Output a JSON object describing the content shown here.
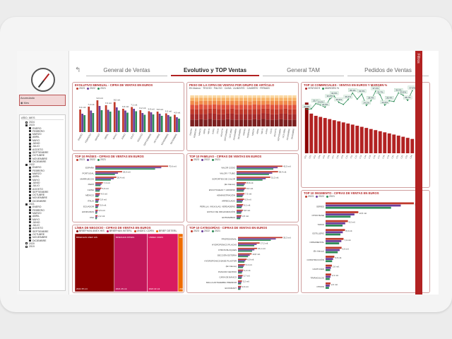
{
  "colors": {
    "accent": "#b22222",
    "dark_red": "#8b0000",
    "c2023": "#c0392b",
    "c2022": "#6a3d9a",
    "c2021": "#2e8b57",
    "treemap_bg": "#c2185b",
    "treemap_alt": "#e65100"
  },
  "tabs": [
    {
      "label": "General de Ventas"
    },
    {
      "label": "Evolutivo y TOP Ventas"
    },
    {
      "label": "General TAM"
    },
    {
      "label": "Pedidos de Ventas"
    }
  ],
  "filters_pane": {
    "label": "Filtros"
  },
  "sidebar": {
    "compass_icon": "compass-icon",
    "slicer": {
      "title": "Acumulado",
      "option": "Mes"
    },
    "tree": {
      "header": "AÑO, MES",
      "rows": [
        {
          "level": 1,
          "label": "2024",
          "checked": false
        },
        {
          "level": 1,
          "label": "2023",
          "checked": true
        },
        {
          "level": 2,
          "label": "ENERO",
          "checked": true
        },
        {
          "level": 2,
          "label": "FEBRERO",
          "checked": true
        },
        {
          "level": 2,
          "label": "MARZO",
          "checked": true
        },
        {
          "level": 2,
          "label": "ABRIL",
          "checked": true
        },
        {
          "level": 2,
          "label": "MAYO",
          "checked": true
        },
        {
          "level": 2,
          "label": "JUNIO",
          "checked": true
        },
        {
          "level": 2,
          "label": "JULIO",
          "checked": true
        },
        {
          "level": 2,
          "label": "AGOSTO",
          "checked": true
        },
        {
          "level": 2,
          "label": "SEPTIEMBRE",
          "checked": true
        },
        {
          "level": 2,
          "label": "OCTUBRE",
          "checked": true
        },
        {
          "level": 2,
          "label": "NOVIEMBRE",
          "checked": true
        },
        {
          "level": 2,
          "label": "DICIEMBRE",
          "checked": true
        },
        {
          "level": 1,
          "label": "2022",
          "checked": true
        },
        {
          "level": 2,
          "label": "ENERO",
          "checked": true
        },
        {
          "level": 2,
          "label": "FEBRERO",
          "checked": true
        },
        {
          "level": 2,
          "label": "MARZO",
          "checked": true
        },
        {
          "level": 2,
          "label": "ABRIL",
          "checked": true
        },
        {
          "level": 2,
          "label": "MAYO",
          "checked": true
        },
        {
          "level": 2,
          "label": "JUNIO",
          "checked": true
        },
        {
          "level": 2,
          "label": "JULIO",
          "checked": true
        },
        {
          "level": 2,
          "label": "AGOSTO",
          "checked": true
        },
        {
          "level": 2,
          "label": "SEPTIEMBRE",
          "checked": true
        },
        {
          "level": 2,
          "label": "OCTUBRE",
          "checked": true
        },
        {
          "level": 2,
          "label": "NOVIEMBRE",
          "checked": true
        },
        {
          "level": 2,
          "label": "DICIEMBRE",
          "checked": true
        },
        {
          "level": 1,
          "label": "2021",
          "checked": true
        },
        {
          "level": 2,
          "label": "ENERO",
          "checked": true
        },
        {
          "level": 2,
          "label": "FEBRERO",
          "checked": true
        },
        {
          "level": 2,
          "label": "MARZO",
          "checked": true
        },
        {
          "level": 2,
          "label": "ABRIL",
          "checked": true
        },
        {
          "level": 2,
          "label": "MAYO",
          "checked": true
        },
        {
          "level": 2,
          "label": "JUNIO",
          "checked": true
        },
        {
          "level": 2,
          "label": "JULIO",
          "checked": true
        },
        {
          "level": 2,
          "label": "AGOSTO",
          "checked": true
        },
        {
          "level": 2,
          "label": "SEPTIEMBRE",
          "checked": true
        },
        {
          "level": 2,
          "label": "OCTUBRE",
          "checked": true
        },
        {
          "level": 2,
          "label": "NOVIEMBRE",
          "checked": true
        },
        {
          "level": 2,
          "label": "DICIEMBRE",
          "checked": true
        },
        {
          "level": 1,
          "label": "2020",
          "checked": false
        },
        {
          "level": 1,
          "label": "2019",
          "checked": false
        }
      ]
    }
  },
  "panels": {
    "evolutivo": {
      "title": "EVOLUTIVO MENSUAL - CIFRA DE VENTAS EN EUROS",
      "legend": [
        "2023",
        "2022",
        "2021"
      ]
    },
    "peso_cifra": {
      "title": "PESO DE LA CIFRA DE VENTAS POR GRUPO DE ARTÍCULO",
      "legend": [
        "Eh blanco",
        "TECHO",
        "FALSO",
        "CASA",
        "ALBAYES",
        "CAMERS",
        "FIRMAS"
      ]
    },
    "top_comerciales": {
      "title": "TOP 10 COMERCIALES - VENTAS EN EUROS Y MARGEN %",
      "legend": [
        "VENTAS €",
        "MARGEN %"
      ]
    },
    "top_paises": {
      "title": "TOP 10 PAÍSES - CIFRAS DE VENTAS EN EUROS",
      "legend": [
        "2023",
        "2022",
        "2021"
      ]
    },
    "top_familias": {
      "title": "TOP 10 FAMILIAS - CIFRAS DE VENTAS EN EUROS",
      "legend": [
        "2023",
        "2022",
        "2021"
      ]
    },
    "top_segmento": {
      "title": "TOP 10 SEGMENTO - CIFRAS DE VENTAS EN EUROS",
      "legend": [
        "2023",
        "2022",
        "2021"
      ]
    },
    "linea_negocio": {
      "title": "LÍNEA DE NEGOCIO - CIFRAS DE VENTAS EN EUROS",
      "legend": [
        "BRIEFHAN ANEX HIS",
        "BRIEFHAN INTERL",
        "UNDEC CDRN",
        "BRIEF DETERL"
      ]
    },
    "top_categorias": {
      "title": "TOP 10 CATEGORÍAS - CIFRAS DE VENTAS EN EUROS",
      "legend": [
        "2023",
        "2022",
        "2021"
      ]
    }
  },
  "chart_data": [
    {
      "type": "bar",
      "title": "EVOLUTIVO MENSUAL - CIFRA DE VENTAS EN EUROS",
      "categories": [
        "ENERO",
        "FEBRERO",
        "MARZO",
        "ABRIL",
        "MAYO",
        "JUNIO",
        "JULIO",
        "AGOSTO",
        "SEPTIEMBRE",
        "OCTUBRE",
        "NOVIEMBRE",
        "DICIEMBRE"
      ],
      "series": [
        {
          "name": "2023",
          "values": [
            6.4,
            7.2,
            9.0,
            7.6,
            8.5,
            6.6,
            7.1,
            6.2,
            5.9,
            5.8,
            5.3,
            4.9
          ]
        },
        {
          "name": "2022",
          "values": [
            5.2,
            6.1,
            7.4,
            6.3,
            7.0,
            6.1,
            6.6,
            5.4,
            5.6,
            5.2,
            4.8,
            4.2
          ]
        },
        {
          "name": "2021",
          "values": [
            4.8,
            5.4,
            6.2,
            5.8,
            6.1,
            5.5,
            5.9,
            4.9,
            5.0,
            4.6,
            4.4,
            3.8
          ]
        }
      ],
      "data_labels": [
        "6,4 mil.",
        "7,2 mil.",
        "9,0 mil.",
        "7,6 mil.",
        "8,5 mil.",
        "6,6 mil.",
        "7,1 mil.",
        "6,2 mil.",
        "5,9 mil.",
        "5,8 mil.",
        "5,3 mil.",
        "4,9 mil."
      ],
      "ylim": [
        0,
        10
      ]
    },
    {
      "type": "bar",
      "title": "PESO DE LA CIFRA DE VENTAS POR GRUPO DE ARTÍCULO",
      "categories": [
        "ENERO",
        "FEBRERO",
        "MARZO",
        "ABRIL",
        "MAYO",
        "JUNIO",
        "JULIO",
        "AGOSTO",
        "SEPTIEMBRE",
        "OCTUBRE",
        "NOVIEMBRE",
        "DICIEMBRE",
        "ENERO",
        "FEBRERO",
        "MARZO",
        "ABRIL",
        "MAYO",
        "JUNIO",
        "JULIO",
        "AGOSTO",
        "SEPTIEMBRE",
        "OCTUBRE",
        "NOVIEMBRE",
        "DICIEMBRE"
      ],
      "series": [
        {
          "name": "Eh blanco",
          "values": [
            0.22,
            0.21,
            0.23,
            0.22,
            0.24,
            0.22,
            0.21,
            0.22,
            0.23,
            0.22,
            0.21,
            0.22,
            0.22,
            0.21,
            0.23,
            0.22,
            0.24,
            0.22,
            0.21,
            0.22,
            0.23,
            0.22,
            0.21,
            0.22
          ]
        },
        {
          "name": "TECHO",
          "values": [
            0.18,
            0.19,
            0.17,
            0.18,
            0.18,
            0.19,
            0.18,
            0.17,
            0.18,
            0.19,
            0.18,
            0.18,
            0.18,
            0.19,
            0.17,
            0.18,
            0.18,
            0.19,
            0.18,
            0.17,
            0.18,
            0.19,
            0.18,
            0.18
          ]
        },
        {
          "name": "FALSO",
          "values": [
            0.16,
            0.15,
            0.16,
            0.16,
            0.15,
            0.16,
            0.17,
            0.16,
            0.15,
            0.16,
            0.16,
            0.15,
            0.16,
            0.15,
            0.16,
            0.16,
            0.15,
            0.16,
            0.17,
            0.16,
            0.15,
            0.16,
            0.16,
            0.15
          ]
        },
        {
          "name": "CASA",
          "values": [
            0.14,
            0.14,
            0.15,
            0.14,
            0.13,
            0.14,
            0.14,
            0.15,
            0.14,
            0.13,
            0.14,
            0.15,
            0.14,
            0.14,
            0.15,
            0.14,
            0.13,
            0.14,
            0.14,
            0.15,
            0.14,
            0.13,
            0.14,
            0.15
          ]
        },
        {
          "name": "ALBAYES",
          "values": [
            0.12,
            0.12,
            0.11,
            0.12,
            0.12,
            0.11,
            0.12,
            0.12,
            0.12,
            0.12,
            0.13,
            0.12,
            0.12,
            0.12,
            0.11,
            0.12,
            0.12,
            0.11,
            0.12,
            0.12,
            0.12,
            0.12,
            0.13,
            0.12
          ]
        },
        {
          "name": "CAMERS",
          "values": [
            0.1,
            0.11,
            0.1,
            0.1,
            0.1,
            0.1,
            0.1,
            0.1,
            0.1,
            0.1,
            0.1,
            0.1,
            0.1,
            0.11,
            0.1,
            0.1,
            0.1,
            0.1,
            0.1,
            0.1,
            0.1,
            0.1,
            0.1,
            0.1
          ]
        },
        {
          "name": "FIRMAS",
          "values": [
            0.08,
            0.08,
            0.08,
            0.08,
            0.08,
            0.08,
            0.08,
            0.08,
            0.08,
            0.08,
            0.08,
            0.08,
            0.08,
            0.08,
            0.08,
            0.08,
            0.08,
            0.08,
            0.08,
            0.08,
            0.08,
            0.08,
            0.08,
            0.08
          ]
        }
      ],
      "ylim": [
        0,
        1
      ]
    },
    {
      "type": "bar",
      "title": "TOP 10 COMERCIALES - VENTAS EN EUROS Y MARGEN %",
      "categories": [
        "C01",
        "C02",
        "C03",
        "C04",
        "C05",
        "C06",
        "C07",
        "C08",
        "C09",
        "C10",
        "C11",
        "C12",
        "C13",
        "C14",
        "C15",
        "C16",
        "C17",
        "C18",
        "C19",
        "C20",
        "C21",
        "C22",
        "C23",
        "C24"
      ],
      "series": [
        {
          "name": "VENTAS €",
          "values": [
            46,
            36,
            34,
            33,
            32,
            31,
            30,
            29,
            28,
            27,
            26,
            25,
            24,
            23,
            22,
            21,
            20,
            19,
            18,
            17,
            16,
            15,
            14,
            13
          ]
        },
        {
          "name": "MARGEN %",
          "values": [
            20.6,
            21.1,
            25.9,
            24.6,
            22.5,
            30.0,
            32.6,
            26.9,
            25.1,
            29.4,
            35.4,
            29.8,
            34.5,
            24.1,
            28.4,
            37.1,
            33.7,
            24.4,
            28.4,
            27.8,
            35.5,
            33.5,
            28.7,
            37.6
          ]
        }
      ],
      "data_labels": [
        "20,6%",
        "",
        "25,9%",
        "24,6%",
        "22,5%",
        "30,0%",
        "32,6%",
        "26,9%",
        "",
        "29,4%",
        "35,4%",
        "",
        "34,5%",
        "24,1%",
        "28,4%",
        "37,1%",
        "33,7%",
        "24,4%",
        "28,4%",
        "",
        "35,5%",
        "33,5%",
        "28,7%",
        "37,6%"
      ],
      "ylim": [
        0,
        50
      ]
    },
    {
      "type": "bar",
      "title": "TOP 10 PAÍSES - CIFRAS DE VENTAS EN EUROS",
      "categories": [
        "ESPAÑA",
        "PORTUGAL",
        "MARRUECOS",
        "PERÚ",
        "CHINA",
        "MÉXICO",
        "ITALIA",
        "ECUADOR",
        "HONDURAS",
        "USA"
      ],
      "series": [
        {
          "name": "2023",
          "values": [
            70.6,
            26.0,
            20.4,
            7.3,
            5.9,
            4.6,
            3.9,
            3.6,
            2.5,
            2.2
          ]
        },
        {
          "name": "2022",
          "values": [
            64.0,
            22.0,
            18.0,
            6.0,
            4.8,
            3.9,
            3.2,
            2.9,
            2.0,
            1.8
          ]
        },
        {
          "name": "2021",
          "values": [
            58.0,
            19.0,
            15.0,
            5.0,
            4.1,
            3.1,
            2.8,
            2.4,
            1.7,
            1.5
          ]
        }
      ],
      "data_labels": [
        "70,6 mil.",
        "26,0 mil.",
        "20,4 mil.",
        "7,3 mil.",
        "5,9 mil.",
        "4,6 mil.",
        "3,9 mil.",
        "3,6 mil.",
        "2,5 mil.",
        "2,2 mil."
      ]
    },
    {
      "type": "bar",
      "title": "TOP 10 FAMILIAS - CIFRAS DE VENTAS EN EUROS",
      "categories": [
        "VALOR CODO",
        "VALOR Y TUBO",
        "SOPORTES DE CALOR",
        "(En blanco)",
        "ESCUTCHEAD Y ADORNO",
        "ADMINISTRACIÓN",
        "ARREGLADO",
        "PERILLA, VÁLVULAS, VERDADERO",
        "ESTILO DE ORGANIZACIÓN",
        "ENTRAMBAS"
      ],
      "series": [
        {
          "name": "2023",
          "values": [
            42.5,
            38.4,
            31.2,
            8.8,
            8.6,
            7.3,
            6.9,
            6.1,
            5.8,
            4.5
          ]
        },
        {
          "name": "2022",
          "values": [
            38.0,
            33.0,
            27.0,
            7.6,
            7.3,
            6.2,
            5.9,
            5.2,
            4.9,
            3.9
          ]
        },
        {
          "name": "2021",
          "values": [
            34.0,
            30.0,
            24.0,
            6.8,
            6.5,
            5.5,
            5.1,
            4.6,
            4.2,
            3.4
          ]
        }
      ],
      "data_labels": [
        "42,5 mil.",
        "38,4 mil.",
        "31,2 mil.",
        "8,8 mil.",
        "8,6 mil.",
        "7,3 mil.",
        "6,9 mil.",
        "6,1 mil.",
        "5,8 mil.",
        "4,5 mil."
      ]
    },
    {
      "type": "bar",
      "title": "TOP 10 SEGMENTO - CIFRAS DE VENTAS EN EUROS",
      "categories": [
        "SERIES",
        "OTRO BASE",
        "TAPAS",
        "ESTILLERO",
        "ORNAMENTAL",
        "(En blanco)",
        "CONSTRUCCIÓN",
        "CANTUCES",
        "TRIÁNGULOS",
        "OTROS"
      ],
      "series": [
        {
          "name": "2023",
          "values": [
            36.4,
            13.5,
            9.2,
            8.0,
            7.4,
            6.6,
            3.6,
            2.6,
            2.3,
            2.0
          ]
        },
        {
          "name": "2022",
          "values": [
            31.0,
            11.9,
            8.1,
            7.1,
            6.5,
            5.8,
            3.1,
            2.2,
            2.0,
            1.7
          ]
        },
        {
          "name": "2021",
          "values": [
            27.0,
            10.3,
            7.0,
            6.1,
            5.6,
            5.0,
            2.7,
            1.9,
            1.7,
            1.4
          ]
        }
      ],
      "data_labels": [
        "36,4 mil.",
        "13,5 mil.",
        "9,2 mil.",
        "8,0 mil.",
        "7,4 mil.",
        "6,6 mil.",
        "3,6 mil.",
        "2,6 mil.",
        "2,3 mil.",
        "2,0 mil."
      ]
    },
    {
      "type": "heatmap",
      "title": "LÍNEA DE NEGOCIO - CIFRAS DE VENTAS EN EUROS",
      "categories": [
        "BRIEFHAN ANEX HIS",
        "BRIEFHAN INTERL",
        "UNDEC CDRN",
        "BRIEF DETERL"
      ],
      "values": [
        40.3,
        33.8,
        31.4,
        5.0
      ],
      "data_labels": [
        "2022 25 mil.",
        "2021 26 mil.",
        "2022 22 mil.",
        "2023 20 mil."
      ]
    },
    {
      "type": "bar",
      "title": "TOP 10 CATEGORÍAS - CIFRAS DE VENTAS EN EUROS",
      "categories": [
        "PROFESIONAL",
        "HYDROPONICS PLACAS",
        "OTROS BLOQUES",
        "SECCIÓN ESTERIA",
        "HYDROPONICS BASE PLASTER",
        "(En blanco)",
        "PASCOR CENTRO",
        "CARA DE BANCO",
        "MALLA ANTIHIERBA PREMIUM",
        "ECOCRAFT"
      ],
      "series": [
        {
          "name": "2023",
          "values": [
            35.3,
            17.2,
            15.1,
            10.8,
            6.9,
            5.4,
            4.2,
            3.7,
            3.2,
            2.6
          ]
        },
        {
          "name": "2022",
          "values": [
            30.0,
            14.8,
            13.0,
            9.3,
            5.9,
            4.6,
            3.6,
            3.2,
            2.7,
            2.2
          ]
        },
        {
          "name": "2021",
          "values": [
            26.0,
            12.9,
            11.2,
            8.0,
            5.1,
            4.0,
            3.1,
            2.8,
            2.4,
            1.9
          ]
        }
      ],
      "data_labels": [
        "35,3 mil.",
        "17,2 mil.",
        "15,1 mil.",
        "10,8 mil.",
        "6,9 mil.",
        "5,4 mil.",
        "4,2 mil.",
        "3,7 mil.",
        "3,2 mil.",
        "2,6 mil."
      ]
    }
  ]
}
